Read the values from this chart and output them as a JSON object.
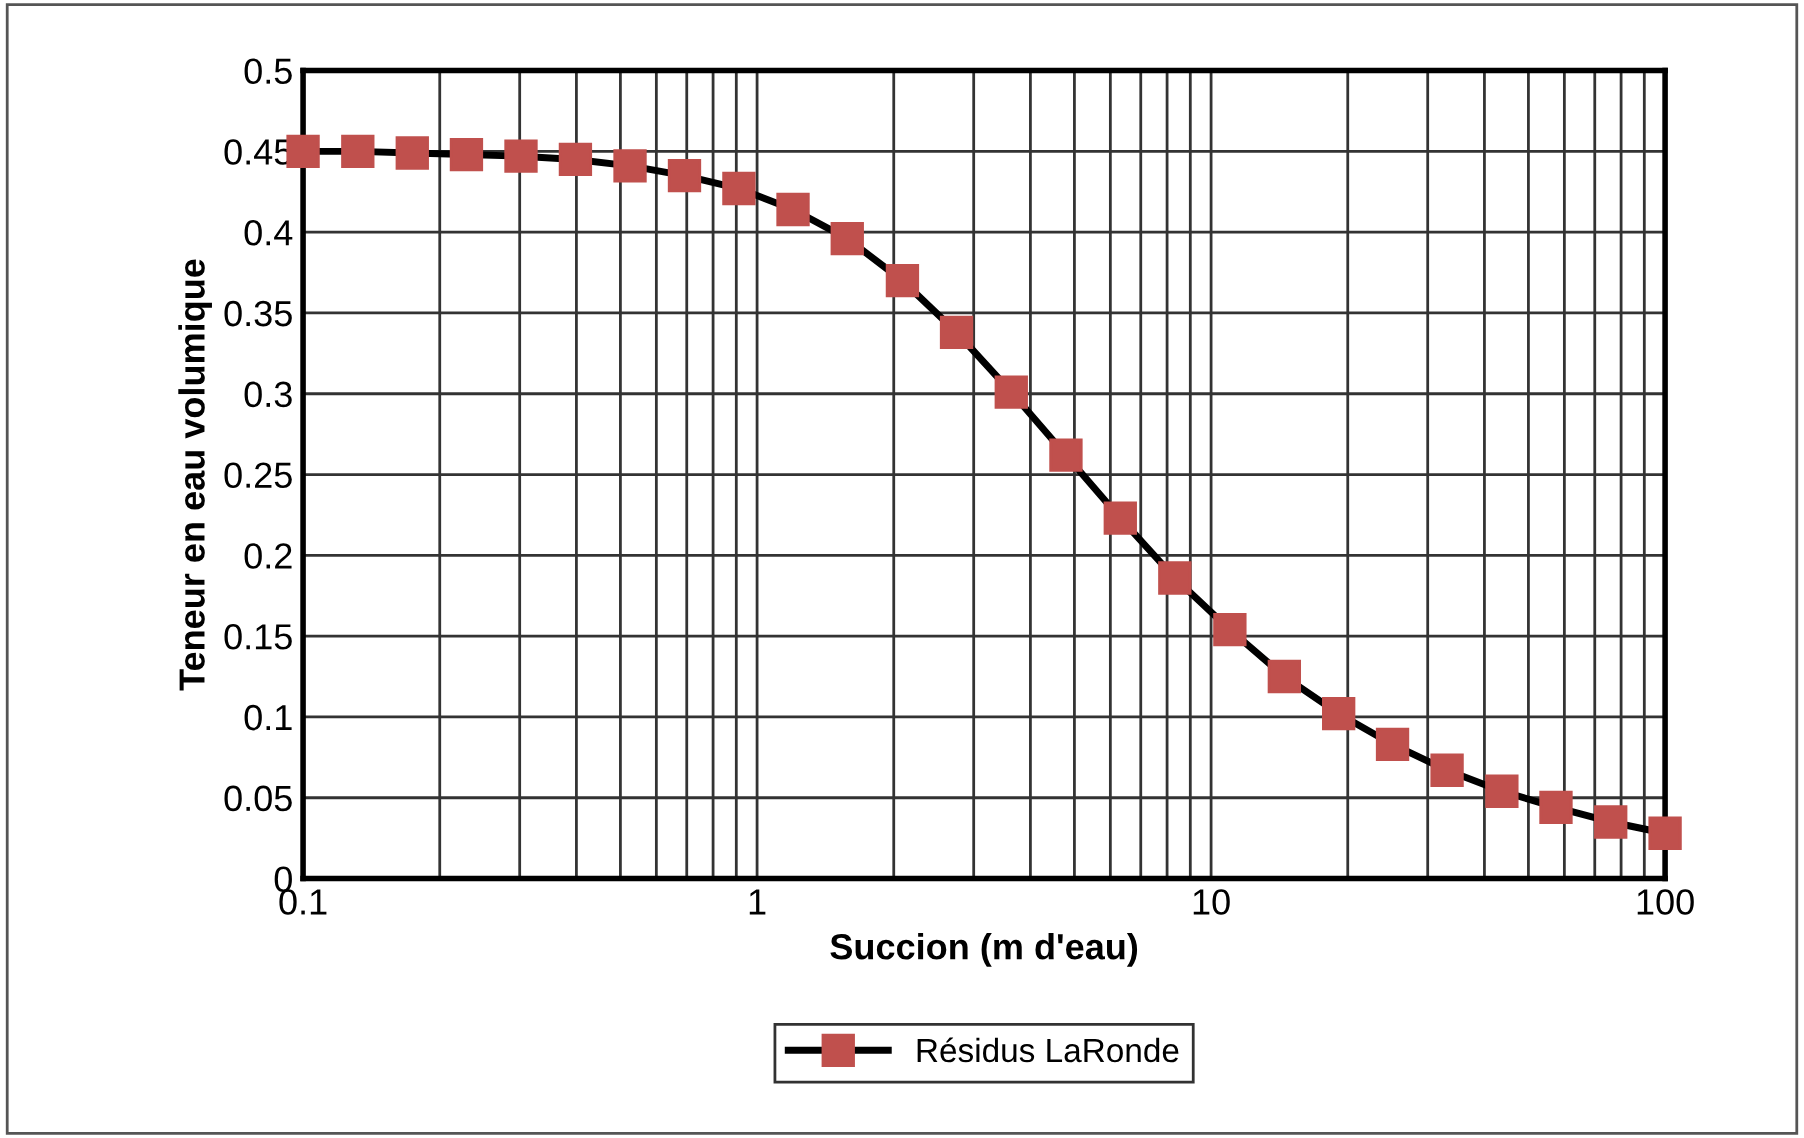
{
  "chart_data": {
    "type": "line",
    "xlabel": "Succion (m d'eau)",
    "ylabel": "Teneur en eau volumique",
    "log": "x",
    "x": [
      0.1,
      0.132,
      0.174,
      0.229,
      0.302,
      0.398,
      0.525,
      0.692,
      0.912,
      1.2,
      1.58,
      2.09,
      2.75,
      3.63,
      4.79,
      6.31,
      8.32,
      11.0,
      14.5,
      19.1,
      25.1,
      33.1,
      43.7,
      57.5,
      75.9,
      100
    ],
    "series": [
      {
        "name": "Résidus LaRonde",
        "color": "#c0504d",
        "values": [
          0.45,
          0.45,
          0.449,
          0.448,
          0.447,
          0.445,
          0.441,
          0.435,
          0.427,
          0.414,
          0.396,
          0.37,
          0.338,
          0.301,
          0.262,
          0.223,
          0.186,
          0.154,
          0.125,
          0.102,
          0.083,
          0.067,
          0.054,
          0.044,
          0.035,
          0.028
        ]
      }
    ],
    "xlim": [
      0.1,
      100
    ],
    "xticks": [
      0.1,
      1,
      10,
      100
    ],
    "ylim": [
      0,
      0.5
    ],
    "yticks": [
      0,
      0.05,
      0.1,
      0.15,
      0.2,
      0.25,
      0.3,
      0.35,
      0.4,
      0.45,
      0.5
    ],
    "grid": true,
    "legend": "bottom",
    "marker": "square",
    "line_style": "solid"
  }
}
